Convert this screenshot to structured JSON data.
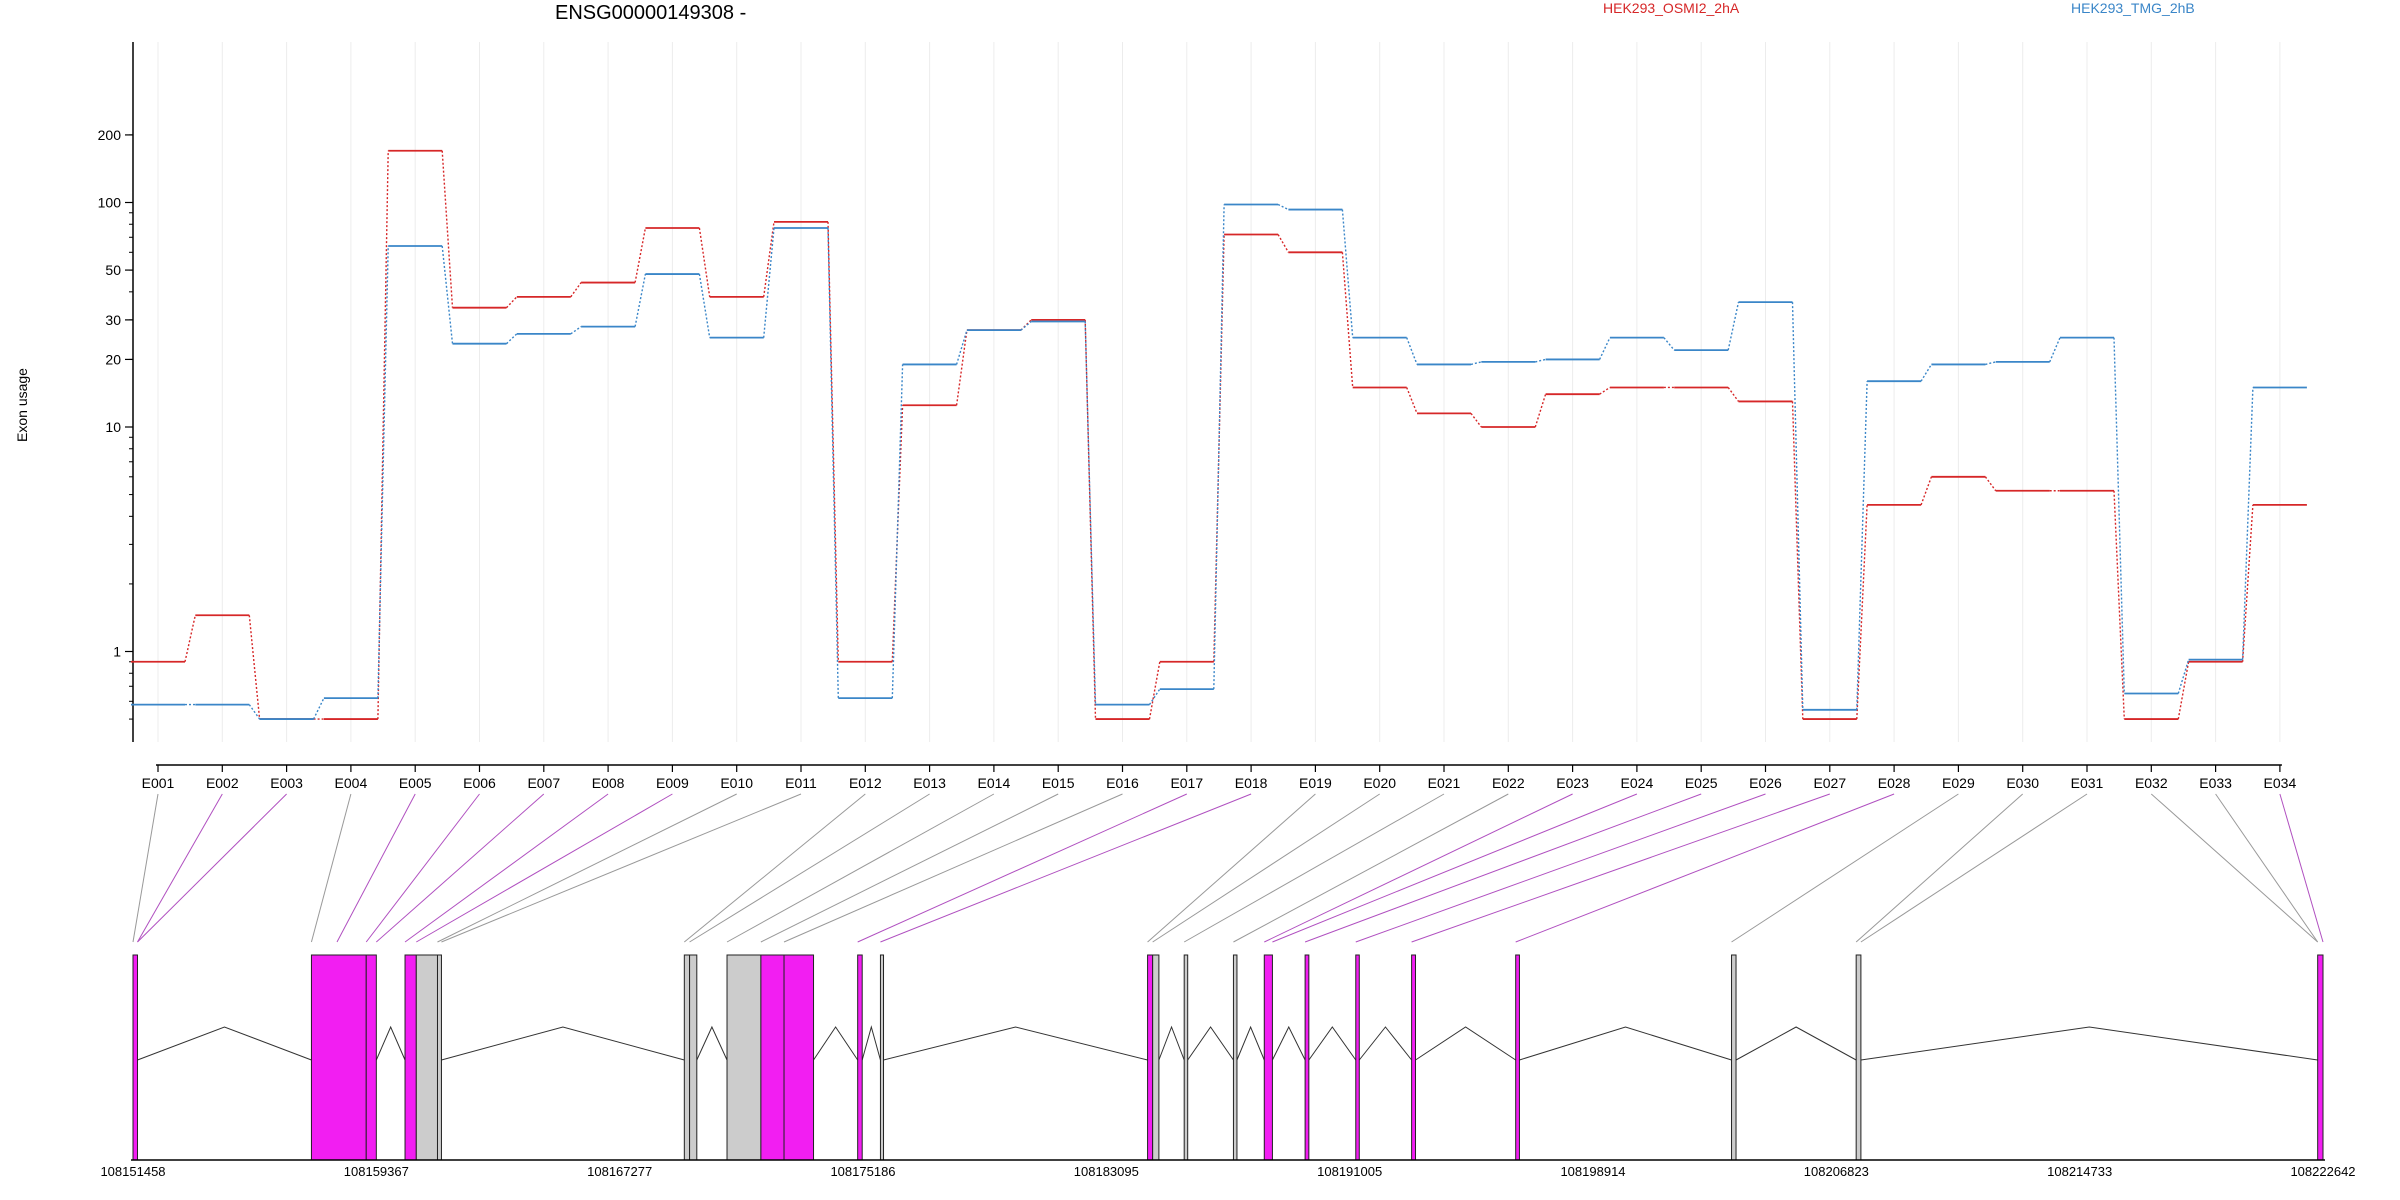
{
  "chart_data": {
    "type": "line",
    "title": "ENSG00000149308 -",
    "ylabel": "Exon usage",
    "yscale": "log",
    "ylim": [
      0.5,
      210
    ],
    "yticks": [
      1,
      10,
      20,
      30,
      50,
      100,
      200
    ],
    "categories": [
      "E001",
      "E002",
      "E003",
      "E004",
      "E005",
      "E006",
      "E007",
      "E008",
      "E009",
      "E010",
      "E011",
      "E012",
      "E013",
      "E014",
      "E015",
      "E016",
      "E017",
      "E018",
      "E019",
      "E020",
      "E021",
      "E022",
      "E023",
      "E024",
      "E025",
      "E026",
      "E027",
      "E028",
      "E029",
      "E030",
      "E031",
      "E032",
      "E033",
      "E034"
    ],
    "series": [
      {
        "name": "HEK293_OSMI2_2hA",
        "color": "#d62728",
        "values": [
          0.9,
          1.45,
          0.5,
          0.5,
          170,
          34,
          38,
          44,
          77,
          38,
          82,
          0.9,
          12.5,
          27,
          30,
          0.5,
          0.9,
          72,
          60,
          15,
          11.5,
          10,
          14,
          15,
          15,
          13,
          0.5,
          4.5,
          6,
          5.2,
          5.2,
          0.5,
          0.9,
          4.5
        ]
      },
      {
        "name": "HEK293_TMG_2hB",
        "color": "#3a86c8",
        "values": [
          0.58,
          0.58,
          0.5,
          0.62,
          64,
          23.5,
          26,
          28,
          48,
          25,
          77,
          0.62,
          19,
          27,
          29.5,
          0.58,
          0.68,
          98,
          93,
          25,
          19,
          19.5,
          20,
          25,
          22,
          36,
          0.55,
          16,
          19,
          19.5,
          25,
          0.65,
          0.92,
          15
        ]
      }
    ]
  },
  "gene_model": {
    "coordinate_labels": [
      "108151458",
      "108159367",
      "108167277",
      "108175186",
      "108183095",
      "108191005",
      "108198914",
      "108206823",
      "108214733",
      "108222642"
    ],
    "coordinate_values": [
      108151458,
      108159367,
      108167277,
      108175186,
      108183095,
      108191005,
      108198914,
      108206823,
      108214733,
      108222642
    ],
    "highlight_color": "#f21ef2",
    "plain_color": "#cccccc",
    "exon_segments": [
      {
        "start": 108151458,
        "end": 108151604,
        "highlight": true
      },
      {
        "start": 108157258,
        "end": 108159039,
        "highlight": true
      },
      {
        "start": 108159039,
        "end": 108159367,
        "highlight": true
      },
      {
        "start": 108160300,
        "end": 108160666,
        "highlight": true
      },
      {
        "start": 108160666,
        "end": 108161355,
        "highlight": false
      },
      {
        "start": 108161355,
        "end": 108161484,
        "highlight": false
      },
      {
        "start": 108169378,
        "end": 108169549,
        "highlight": false
      },
      {
        "start": 108169549,
        "end": 108169784,
        "highlight": false
      },
      {
        "start": 108170766,
        "end": 108171867,
        "highlight": false
      },
      {
        "start": 108171867,
        "end": 108172619,
        "highlight": true
      },
      {
        "start": 108172619,
        "end": 108173578,
        "highlight": true
      },
      {
        "start": 108175013,
        "end": 108175160,
        "highlight": true
      },
      {
        "start": 108175753,
        "end": 108175853,
        "highlight": false
      },
      {
        "start": 108184436,
        "end": 108184601,
        "highlight": true
      },
      {
        "start": 108184601,
        "end": 108184804,
        "highlight": false
      },
      {
        "start": 108185626,
        "end": 108185740,
        "highlight": false
      },
      {
        "start": 108187227,
        "end": 108187341,
        "highlight": false
      },
      {
        "start": 108188229,
        "end": 108188494,
        "highlight": true
      },
      {
        "start": 108189556,
        "end": 108189678,
        "highlight": true
      },
      {
        "start": 108191203,
        "end": 108191317,
        "highlight": true
      },
      {
        "start": 108193018,
        "end": 108193145,
        "highlight": true
      },
      {
        "start": 108196401,
        "end": 108196523,
        "highlight": true
      },
      {
        "start": 108203417,
        "end": 108203563,
        "highlight": false
      },
      {
        "start": 108207468,
        "end": 108207622,
        "highlight": false
      },
      {
        "start": 108222469,
        "end": 108222642,
        "highlight": true
      }
    ],
    "connector_genomic": [
      108151458,
      108151604,
      108151604,
      108157258,
      108158089,
      108159039,
      108159367,
      108160300,
      108160666,
      108161355,
      108161484,
      108169378,
      108169549,
      108170766,
      108171867,
      108172619,
      108175013,
      108175753,
      108184436,
      108184601,
      108185626,
      108187227,
      108188229,
      108188494,
      108189556,
      108191203,
      108193018,
      108196401,
      108203417,
      108207468,
      108207622,
      108222469,
      108222469,
      108222642
    ],
    "connector_highlight": [
      false,
      true,
      true,
      false,
      true,
      true,
      true,
      true,
      true,
      false,
      false,
      false,
      false,
      false,
      false,
      false,
      true,
      true,
      false,
      false,
      false,
      false,
      true,
      true,
      true,
      true,
      true,
      true,
      false,
      false,
      false,
      false,
      false,
      true
    ]
  }
}
